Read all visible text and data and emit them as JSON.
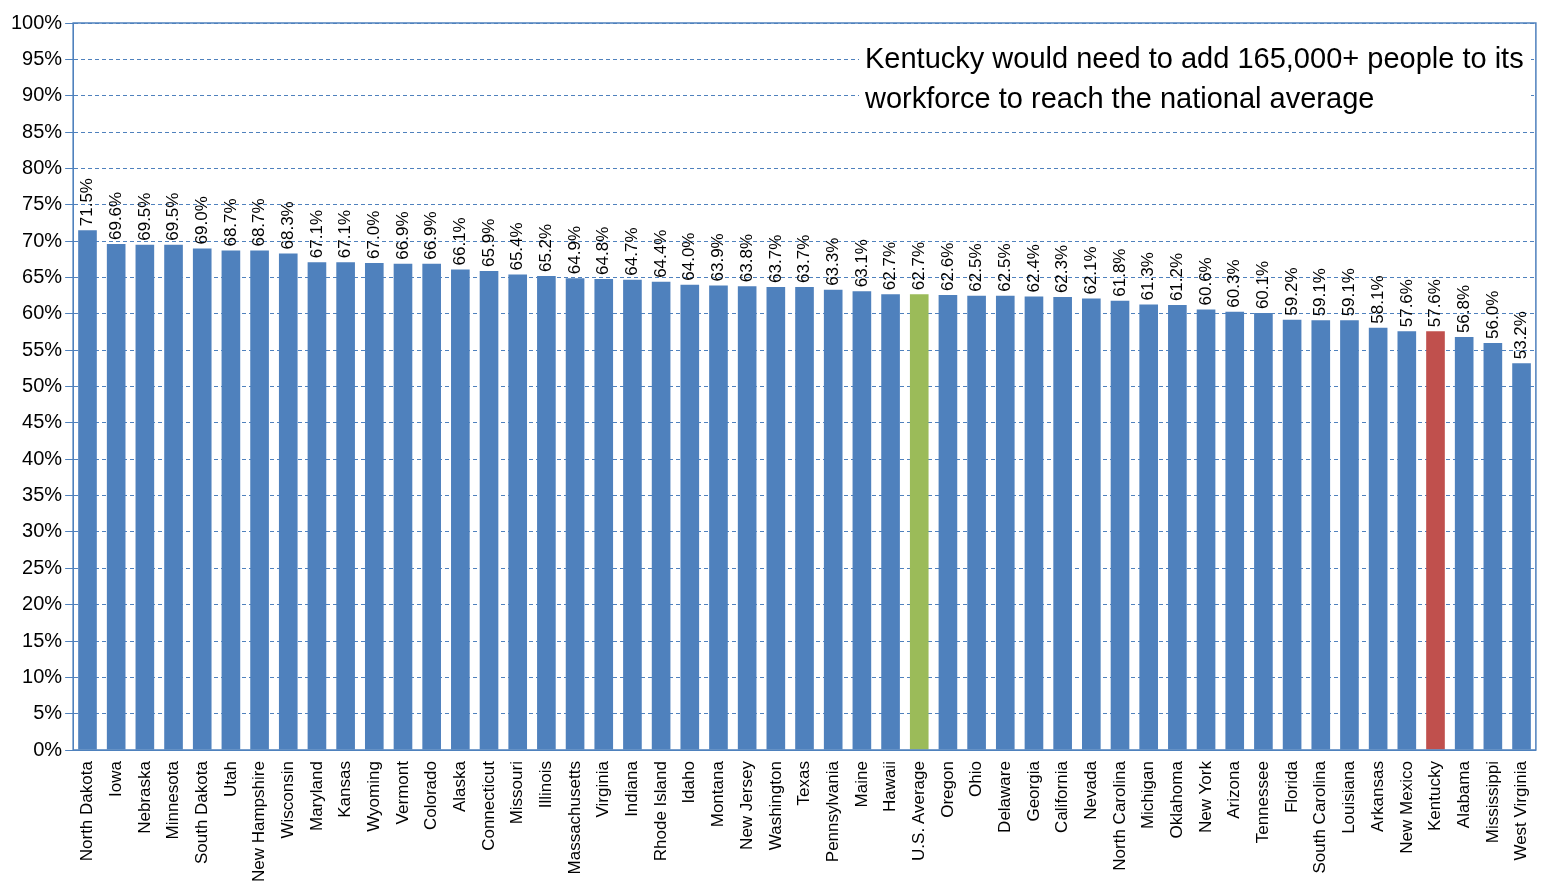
{
  "chart_data": {
    "type": "bar",
    "categories": [
      "North Dakota",
      "Iowa",
      "Nebraska",
      "Minnesota",
      "South Dakota",
      "Utah",
      "New Hampshire",
      "Wisconsin",
      "Maryland",
      "Kansas",
      "Wyoming",
      "Vermont",
      "Colorado",
      "Alaska",
      "Connecticut",
      "Missouri",
      "Illinois",
      "Massachusetts",
      "Virginia",
      "Indiana",
      "Rhode Island",
      "Idaho",
      "Montana",
      "New Jersey",
      "Washington",
      "Texas",
      "Pennsylvania",
      "Maine",
      "Hawaii",
      "U.S. Average",
      "Oregon",
      "Ohio",
      "Delaware",
      "Georgia",
      "California",
      "Nevada",
      "North Carolina",
      "Michigan",
      "Oklahoma",
      "New York",
      "Arizona",
      "Tennessee",
      "Florida",
      "South Carolina",
      "Louisiana",
      "Arkansas",
      "New Mexico",
      "Kentucky",
      "Alabama",
      "Mississippi",
      "West Virginia"
    ],
    "values": [
      71.5,
      69.6,
      69.5,
      69.5,
      69.0,
      68.7,
      68.7,
      68.3,
      67.1,
      67.1,
      67.0,
      66.9,
      66.9,
      66.1,
      65.9,
      65.4,
      65.2,
      64.9,
      64.8,
      64.7,
      64.4,
      64.0,
      63.9,
      63.8,
      63.7,
      63.7,
      63.3,
      63.1,
      62.7,
      62.7,
      62.6,
      62.5,
      62.5,
      62.4,
      62.3,
      62.1,
      61.8,
      61.3,
      61.2,
      60.6,
      60.3,
      60.1,
      59.2,
      59.1,
      59.1,
      58.1,
      57.6,
      57.6,
      56.8,
      56.0,
      53.2
    ],
    "value_labels": [
      "71.5%",
      "69.6%",
      "69.5%",
      "69.5%",
      "69.0%",
      "68.7%",
      "68.7%",
      "68.3%",
      "67.1%",
      "67.1%",
      "67.0%",
      "66.9%",
      "66.9%",
      "66.1%",
      "65.9%",
      "65.4%",
      "65.2%",
      "64.9%",
      "64.8%",
      "64.7%",
      "64.4%",
      "64.0%",
      "63.9%",
      "63.8%",
      "63.7%",
      "63.7%",
      "63.3%",
      "63.1%",
      "62.7%",
      "62.7%",
      "62.6%",
      "62.5%",
      "62.5%",
      "62.4%",
      "62.3%",
      "62.1%",
      "61.8%",
      "61.3%",
      "61.2%",
      "60.6%",
      "60.3%",
      "60.1%",
      "59.2%",
      "59.1%",
      "59.1%",
      "58.1%",
      "57.6%",
      "57.6%",
      "56.8%",
      "56.0%",
      "53.2%"
    ],
    "colors": [
      "#4f81bd",
      "#4f81bd",
      "#4f81bd",
      "#4f81bd",
      "#4f81bd",
      "#4f81bd",
      "#4f81bd",
      "#4f81bd",
      "#4f81bd",
      "#4f81bd",
      "#4f81bd",
      "#4f81bd",
      "#4f81bd",
      "#4f81bd",
      "#4f81bd",
      "#4f81bd",
      "#4f81bd",
      "#4f81bd",
      "#4f81bd",
      "#4f81bd",
      "#4f81bd",
      "#4f81bd",
      "#4f81bd",
      "#4f81bd",
      "#4f81bd",
      "#4f81bd",
      "#4f81bd",
      "#4f81bd",
      "#4f81bd",
      "#9bbb59",
      "#4f81bd",
      "#4f81bd",
      "#4f81bd",
      "#4f81bd",
      "#4f81bd",
      "#4f81bd",
      "#4f81bd",
      "#4f81bd",
      "#4f81bd",
      "#4f81bd",
      "#4f81bd",
      "#4f81bd",
      "#4f81bd",
      "#4f81bd",
      "#4f81bd",
      "#4f81bd",
      "#4f81bd",
      "#c0504d",
      "#4f81bd",
      "#4f81bd",
      "#4f81bd"
    ],
    "ylim": [
      0,
      100
    ],
    "yticks": [
      {
        "value": 0,
        "label": "0%"
      },
      {
        "value": 5,
        "label": "5%"
      },
      {
        "value": 10,
        "label": "10%"
      },
      {
        "value": 15,
        "label": "15%"
      },
      {
        "value": 20,
        "label": "20%"
      },
      {
        "value": 25,
        "label": "25%"
      },
      {
        "value": 30,
        "label": "30%"
      },
      {
        "value": 35,
        "label": "35%"
      },
      {
        "value": 40,
        "label": "40%"
      },
      {
        "value": 45,
        "label": "45%"
      },
      {
        "value": 50,
        "label": "50%"
      },
      {
        "value": 55,
        "label": "55%"
      },
      {
        "value": 60,
        "label": "60%"
      },
      {
        "value": 65,
        "label": "65%"
      },
      {
        "value": 70,
        "label": "70%"
      },
      {
        "value": 75,
        "label": "75%"
      },
      {
        "value": 80,
        "label": "80%"
      },
      {
        "value": 85,
        "label": "85%"
      },
      {
        "value": 90,
        "label": "90%"
      },
      {
        "value": 95,
        "label": "95%"
      },
      {
        "value": 100,
        "label": "100%"
      }
    ],
    "grid": "y",
    "legend": false,
    "annotations": [
      "Kentucky would need to add 165,000+ people to its workforce to reach the national average"
    ]
  }
}
